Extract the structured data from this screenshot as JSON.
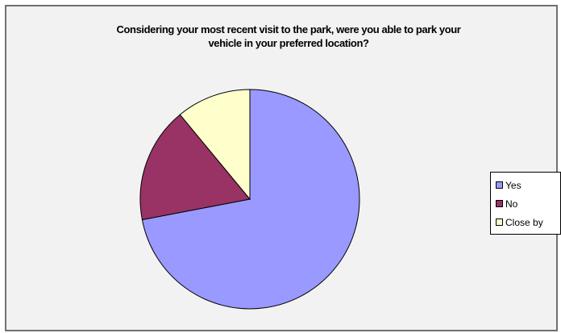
{
  "chart_data": {
    "type": "pie",
    "title": "Considering your most recent visit to the park, were you able to park your vehicle in your preferred location?",
    "title_lines": [
      "Considering your most recent visit to the park, were you able to park your",
      "vehicle in your preferred location?"
    ],
    "categories": [
      "Yes",
      "No",
      "Close by"
    ],
    "values": [
      72,
      17,
      11
    ],
    "colors": [
      "#9999ff",
      "#993366",
      "#ffffcc"
    ],
    "legend_position": "right",
    "start_angle_deg": 0,
    "direction": "clockwise"
  }
}
